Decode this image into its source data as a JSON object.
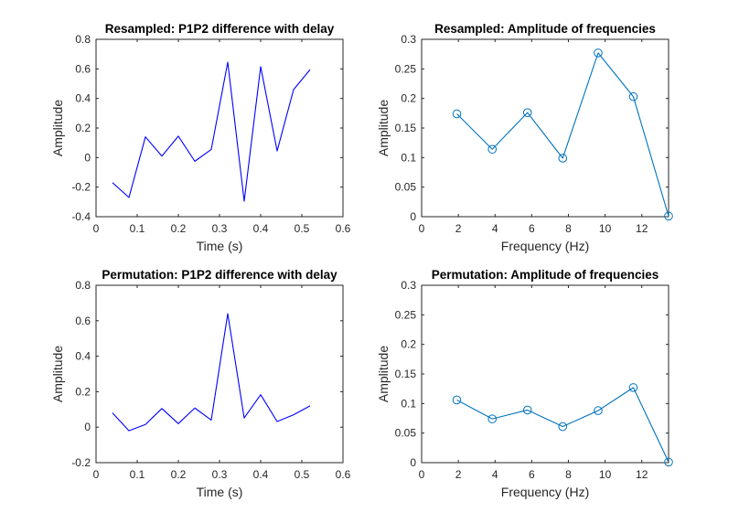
{
  "chart_data": [
    {
      "type": "line",
      "title": "Resampled: P1P2 difference with delay",
      "xlabel": "Time (s)",
      "ylabel": "Amplitude",
      "xlim": [
        0,
        0.6
      ],
      "ylim": [
        -0.4,
        0.8
      ],
      "xticks": [
        0,
        0.1,
        0.2,
        0.3,
        0.4,
        0.5,
        0.6
      ],
      "xtick_labels": [
        "0",
        "0.1",
        "0.2",
        "0.3",
        "0.4",
        "0.5",
        "0.6"
      ],
      "yticks": [
        -0.4,
        -0.2,
        0,
        0.2,
        0.4,
        0.6,
        0.8
      ],
      "ytick_labels": [
        "-0.4",
        "-0.2",
        "0",
        "0.2",
        "0.4",
        "0.6",
        "0.8"
      ],
      "grid": false,
      "series": [
        {
          "color": "#0000ff",
          "markers": false,
          "x": [
            0.04,
            0.08,
            0.12,
            0.16,
            0.2,
            0.24,
            0.28,
            0.32,
            0.36,
            0.4,
            0.44,
            0.48,
            0.52
          ],
          "y": [
            -0.17,
            -0.27,
            0.14,
            0.01,
            0.145,
            -0.025,
            0.055,
            0.645,
            -0.295,
            0.615,
            0.045,
            0.46,
            0.595
          ]
        }
      ]
    },
    {
      "type": "line",
      "title": "Resampled: Amplitude of frequencies",
      "xlabel": "Frequency (Hz)",
      "ylabel": "Amplitude",
      "xlim": [
        0,
        13.46
      ],
      "ylim": [
        0,
        0.3
      ],
      "xticks": [
        0,
        2,
        4,
        6,
        8,
        10,
        12
      ],
      "xtick_labels": [
        "0",
        "2",
        "4",
        "6",
        "8",
        "10",
        "12"
      ],
      "yticks": [
        0,
        0.05,
        0.1,
        0.15,
        0.2,
        0.25,
        0.3
      ],
      "ytick_labels": [
        "0",
        "0.05",
        "0.1",
        "0.15",
        "0.2",
        "0.25",
        "0.3"
      ],
      "grid": false,
      "series": [
        {
          "color": "#0072bd",
          "markers": true,
          "x": [
            1.92,
            3.85,
            5.77,
            7.69,
            9.62,
            11.54,
            13.46
          ],
          "y": [
            0.174,
            0.114,
            0.176,
            0.099,
            0.277,
            0.203,
            0.001
          ]
        }
      ]
    },
    {
      "type": "line",
      "title": "Permutation: P1P2 difference with delay",
      "xlabel": "Time (s)",
      "ylabel": "Amplitude",
      "xlim": [
        0,
        0.6
      ],
      "ylim": [
        -0.2,
        0.8
      ],
      "xticks": [
        0,
        0.1,
        0.2,
        0.3,
        0.4,
        0.5,
        0.6
      ],
      "xtick_labels": [
        "0",
        "0.1",
        "0.2",
        "0.3",
        "0.4",
        "0.5",
        "0.6"
      ],
      "yticks": [
        -0.2,
        0,
        0.2,
        0.4,
        0.6,
        0.8
      ],
      "ytick_labels": [
        "-0.2",
        "0",
        "0.2",
        "0.4",
        "0.6",
        "0.8"
      ],
      "grid": false,
      "series": [
        {
          "color": "#0000ff",
          "markers": false,
          "x": [
            0.04,
            0.08,
            0.12,
            0.16,
            0.2,
            0.24,
            0.28,
            0.32,
            0.36,
            0.4,
            0.44,
            0.48,
            0.52
          ],
          "y": [
            0.08,
            -0.02,
            0.015,
            0.105,
            0.02,
            0.108,
            0.04,
            0.64,
            0.052,
            0.183,
            0.032,
            0.07,
            0.12
          ]
        }
      ]
    },
    {
      "type": "line",
      "title": "Permutation: Amplitude of frequencies",
      "xlabel": "Frequency (Hz)",
      "ylabel": "Amplitude",
      "xlim": [
        0,
        13.46
      ],
      "ylim": [
        0,
        0.3
      ],
      "xticks": [
        0,
        2,
        4,
        6,
        8,
        10,
        12
      ],
      "xtick_labels": [
        "0",
        "2",
        "4",
        "6",
        "8",
        "10",
        "12"
      ],
      "yticks": [
        0,
        0.05,
        0.1,
        0.15,
        0.2,
        0.25,
        0.3
      ],
      "ytick_labels": [
        "0",
        "0.05",
        "0.1",
        "0.15",
        "0.2",
        "0.25",
        "0.3"
      ],
      "grid": false,
      "series": [
        {
          "color": "#0072bd",
          "markers": true,
          "x": [
            1.92,
            3.85,
            5.77,
            7.69,
            9.62,
            11.54,
            13.46
          ],
          "y": [
            0.106,
            0.074,
            0.089,
            0.061,
            0.088,
            0.127,
            0.001
          ]
        }
      ]
    }
  ]
}
